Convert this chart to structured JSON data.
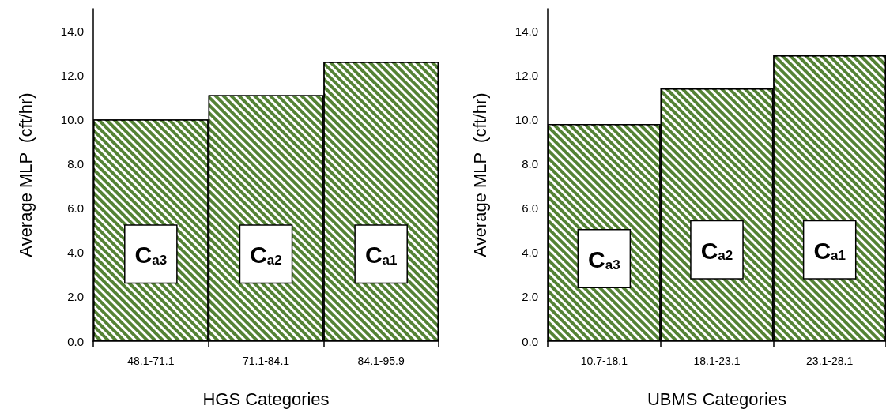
{
  "chart_data": [
    {
      "type": "bar",
      "categories": [
        "48.1-71.1",
        "71.1-84.1",
        "84.1-95.9"
      ],
      "values": [
        10.0,
        11.1,
        12.6
      ],
      "color": "#548235",
      "xlabel": "HGS Categories",
      "ylabel": "Average MLP  (cft/hr)",
      "ylim": [
        0,
        15
      ],
      "yticks": [
        {
          "value": 0,
          "label": "0.0"
        },
        {
          "value": 2,
          "label": "2.0"
        },
        {
          "value": 4,
          "label": "4.0"
        },
        {
          "value": 6,
          "label": "6.0"
        },
        {
          "value": 8,
          "label": "8.0"
        },
        {
          "value": 10,
          "label": "10.0"
        },
        {
          "value": 12,
          "label": "12.0"
        },
        {
          "value": 14,
          "label": "14.0"
        }
      ],
      "grid": false,
      "annotations": [
        "C$_{a3}$",
        "C$_{a2}$",
        "C$_{a1}$"
      ]
    },
    {
      "type": "bar",
      "categories": [
        "10.7-18.1",
        "18.1-23.1",
        "23.1-28.1"
      ],
      "values": [
        9.8,
        11.4,
        12.9
      ],
      "color": "#548235",
      "xlabel": "UBMS Categories",
      "ylabel": "Average MLP  (cft/hr)",
      "ylim": [
        0,
        15
      ],
      "yticks": [
        {
          "value": 0,
          "label": "0.0"
        },
        {
          "value": 2,
          "label": "2.0"
        },
        {
          "value": 4,
          "label": "4.0"
        },
        {
          "value": 6,
          "label": "6.0"
        },
        {
          "value": 8,
          "label": "8.0"
        },
        {
          "value": 10,
          "label": "10.0"
        },
        {
          "value": 12,
          "label": "12.0"
        },
        {
          "value": 14,
          "label": "14.0"
        }
      ],
      "grid": false,
      "annotations": [
        "C$_{a3}$",
        "C$_{a2}$",
        "C$_{a1}$"
      ]
    }
  ]
}
